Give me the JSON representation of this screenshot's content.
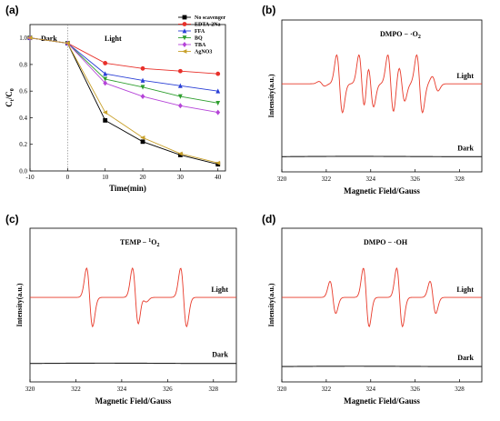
{
  "panels": {
    "a": "(a)",
    "b": "(b)",
    "c": "(c)",
    "d": "(d)"
  },
  "colors": {
    "no_scavenger": "#000000",
    "edta": "#e8302a",
    "ffa": "#2a3fd6",
    "bq": "#2e9e2e",
    "tba": "#b544d8",
    "agno3": "#c8a02a",
    "epr_light": "#e83a2a",
    "epr_dark": "#222222"
  },
  "chart_data": [
    {
      "type": "line",
      "panel": "(a)",
      "xlabel": "Time(min)",
      "ylabel_main": "C",
      "ylabel_sub1": "t",
      "ylabel_mid": "/C",
      "ylabel_sub2": "0",
      "xlim": [
        -10,
        42
      ],
      "ylim": [
        0.0,
        1.1
      ],
      "xticks": [
        -10,
        0,
        10,
        20,
        30,
        40
      ],
      "yticks": [
        0.0,
        0.2,
        0.4,
        0.6,
        0.8,
        1.0
      ],
      "annotations": {
        "dark": "Dark",
        "light": "Light"
      },
      "dark_light_boundary_x": 0,
      "legend_position": "top-right",
      "x": [
        -10,
        0,
        10,
        20,
        30,
        40
      ],
      "series": [
        {
          "name": "No scavenger",
          "marker": "square",
          "color": "#000000",
          "values": [
            1.0,
            0.96,
            0.38,
            0.22,
            0.12,
            0.05
          ]
        },
        {
          "name": "EDTA-2Na",
          "marker": "circle",
          "color": "#e8302a",
          "values": [
            1.0,
            0.96,
            0.81,
            0.77,
            0.75,
            0.73
          ]
        },
        {
          "name": "FFA",
          "marker": "triangle-up",
          "color": "#2a3fd6",
          "values": [
            1.0,
            0.96,
            0.73,
            0.68,
            0.64,
            0.6
          ]
        },
        {
          "name": "BQ",
          "marker": "triangle-down",
          "color": "#2e9e2e",
          "values": [
            1.0,
            0.96,
            0.69,
            0.63,
            0.56,
            0.51
          ]
        },
        {
          "name": "TBA",
          "marker": "diamond",
          "color": "#b544d8",
          "values": [
            1.0,
            0.96,
            0.66,
            0.56,
            0.49,
            0.44
          ]
        },
        {
          "name": "AgNO3",
          "marker": "triangle-left",
          "color": "#c8a02a",
          "values": [
            1.0,
            0.96,
            0.44,
            0.25,
            0.13,
            0.06
          ]
        }
      ]
    },
    {
      "type": "line",
      "panel": "(b)",
      "xlabel": "Magnetic Field/Gauss",
      "ylabel": "Intensity(a.u.)",
      "xlim": [
        320,
        329
      ],
      "xticks": [
        320,
        322,
        324,
        326,
        328
      ],
      "title": "DMPO − ·O",
      "title_sub": "2",
      "series": [
        {
          "name": "Light",
          "color": "#e83a2a",
          "baseline": 0.58,
          "peaks": [
            [
              321.8,
              0.08
            ],
            [
              322.6,
              1.0
            ],
            [
              323.6,
              1.0
            ],
            [
              324.0,
              0.8
            ],
            [
              324.9,
              1.0
            ],
            [
              325.4,
              0.6
            ],
            [
              326.2,
              1.0
            ],
            [
              326.9,
              0.25
            ]
          ]
        },
        {
          "name": "Dark",
          "color": "#222222",
          "baseline": 0.1,
          "peaks": []
        }
      ]
    },
    {
      "type": "line",
      "panel": "(c)",
      "xlabel": "Magnetic Field/Gauss",
      "ylabel": "Intensity(a.u.)",
      "xlim": [
        320,
        329
      ],
      "xticks": [
        320,
        322,
        324,
        326,
        328
      ],
      "title_prefix": "TEMP − ",
      "title_sup": "1",
      "title_suffix": "O",
      "title_sub": "2",
      "series": [
        {
          "name": "Light",
          "color": "#e83a2a",
          "baseline": 0.55,
          "peaks": [
            [
              322.6,
              1.0
            ],
            [
              324.6,
              1.0
            ],
            [
              324.95,
              0.15
            ],
            [
              326.7,
              1.0
            ]
          ]
        },
        {
          "name": "Dark",
          "color": "#222222",
          "baseline": 0.12,
          "peaks": []
        }
      ]
    },
    {
      "type": "line",
      "panel": "(d)",
      "xlabel": "Magnetic Field/Gauss",
      "ylabel": "Intensity(a.u.)",
      "xlim": [
        320,
        329
      ],
      "xticks": [
        320,
        322,
        324,
        326,
        328
      ],
      "title": "DMPO − ·OH",
      "series": [
        {
          "name": "Light",
          "color": "#e83a2a",
          "baseline": 0.55,
          "peaks": [
            [
              322.3,
              0.55
            ],
            [
              323.8,
              1.0
            ],
            [
              325.3,
              1.0
            ],
            [
              326.8,
              0.55
            ]
          ]
        },
        {
          "name": "Dark",
          "color": "#222222",
          "baseline": 0.1,
          "peaks": []
        }
      ]
    }
  ]
}
